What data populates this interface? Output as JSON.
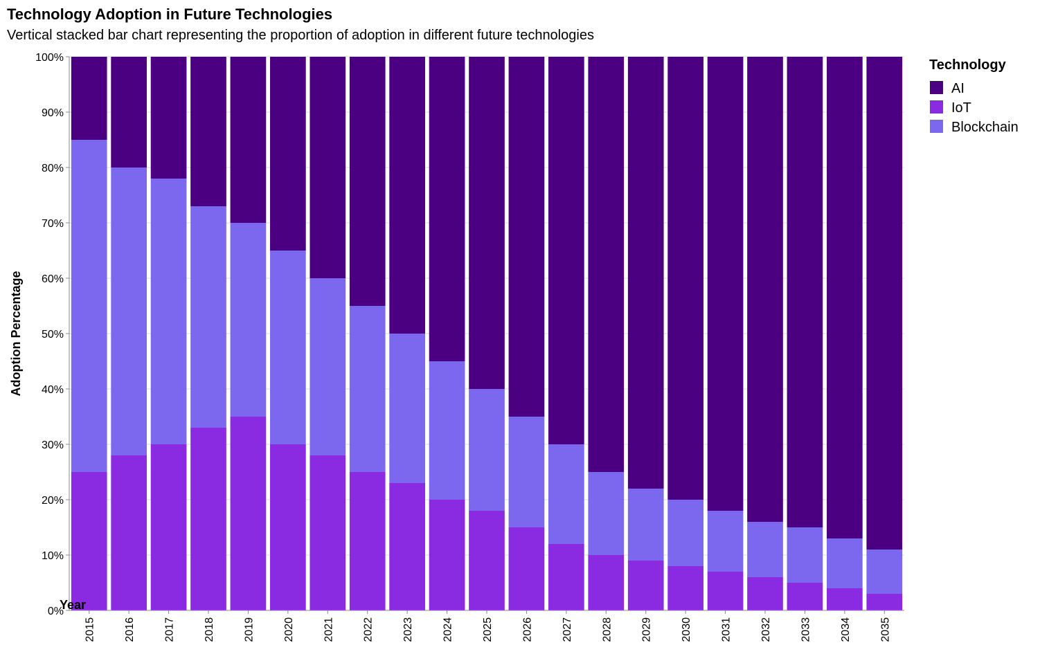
{
  "chart_data": {
    "type": "bar",
    "stacked": true,
    "normalized": true,
    "title": "Technology Adoption in Future Technologies",
    "subtitle": "Vertical stacked bar chart representing the proportion of adoption in different future technologies",
    "xlabel": "Year",
    "ylabel": "Adoption Percentage",
    "ylim": [
      0,
      100
    ],
    "y_ticks": [
      "0%",
      "10%",
      "20%",
      "30%",
      "40%",
      "50%",
      "60%",
      "70%",
      "80%",
      "90%",
      "100%"
    ],
    "grid": true,
    "legend": {
      "title": "Technology",
      "position": "top-right"
    },
    "categories": [
      "2015",
      "2016",
      "2017",
      "2018",
      "2019",
      "2020",
      "2021",
      "2022",
      "2023",
      "2024",
      "2025",
      "2026",
      "2027",
      "2028",
      "2029",
      "2030",
      "2031",
      "2032",
      "2033",
      "2034",
      "2035"
    ],
    "series": [
      {
        "name": "AI",
        "color": "#4b0082",
        "values": [
          15,
          20,
          22,
          27,
          30,
          35,
          40,
          45,
          50,
          55,
          60,
          65,
          70,
          75,
          78,
          80,
          82,
          84,
          85,
          87,
          89
        ]
      },
      {
        "name": "IoT",
        "color": "#8a2be2",
        "values": [
          25,
          28,
          30,
          33,
          35,
          30,
          28,
          25,
          23,
          20,
          18,
          15,
          12,
          10,
          9,
          8,
          7,
          6,
          5,
          4,
          3
        ]
      },
      {
        "name": "Blockchain",
        "color": "#7b68ee",
        "values": [
          60,
          52,
          48,
          40,
          35,
          35,
          32,
          30,
          27,
          25,
          22,
          20,
          18,
          15,
          13,
          12,
          11,
          10,
          10,
          9,
          8
        ]
      }
    ],
    "stack_order_bottom_to_top": [
      "IoT",
      "Blockchain",
      "AI"
    ]
  }
}
